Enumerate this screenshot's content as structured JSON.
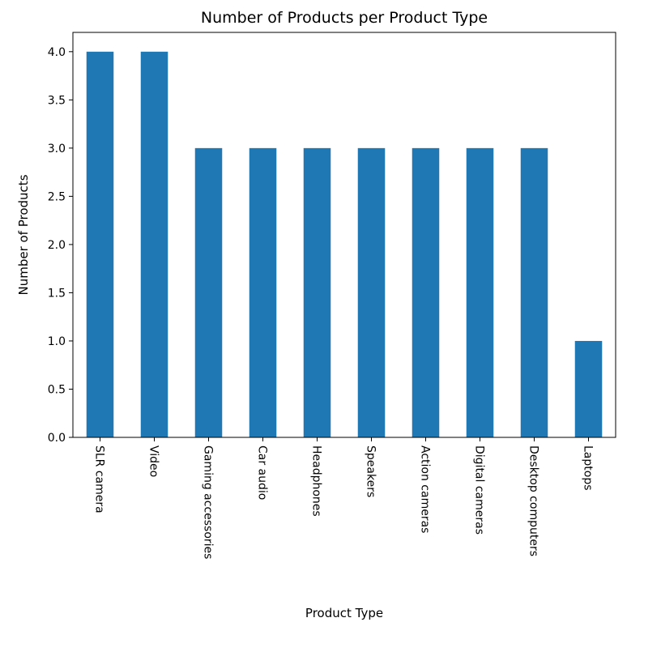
{
  "chart_data": {
    "type": "bar",
    "title": "Number of Products per Product Type",
    "xlabel": "Product Type",
    "ylabel": "Number of Products",
    "categories": [
      "SLR camera",
      "Video",
      "Gaming accessories",
      "Car audio",
      "Headphones",
      "Speakers",
      "Action cameras",
      "Digital cameras",
      "Desktop computers",
      "Laptops"
    ],
    "values": [
      4,
      4,
      3,
      3,
      3,
      3,
      3,
      3,
      3,
      1
    ],
    "ylim": [
      0,
      4.2
    ],
    "yticks": [
      "0.0",
      "0.5",
      "1.0",
      "1.5",
      "2.0",
      "2.5",
      "3.0",
      "3.5",
      "4.0"
    ],
    "bar_color": "#1f77b4",
    "grid": false,
    "legend": "none"
  }
}
